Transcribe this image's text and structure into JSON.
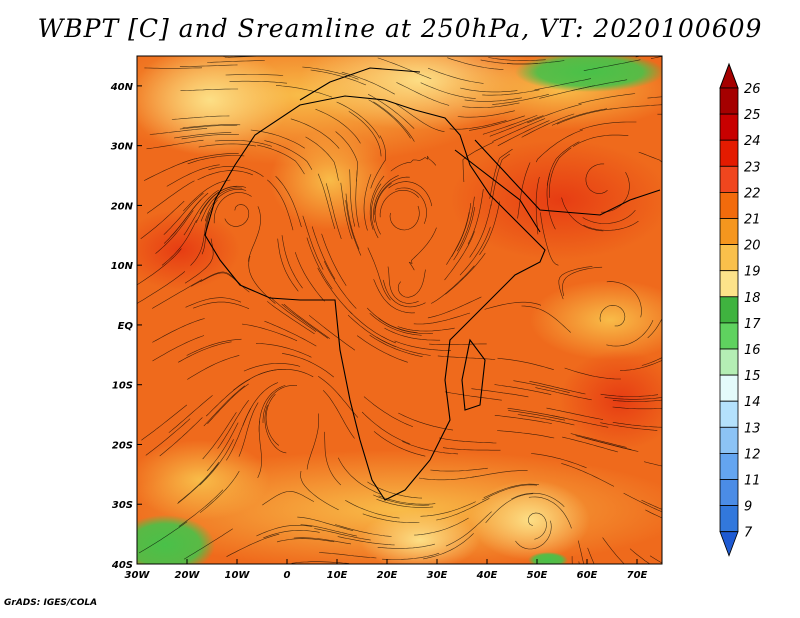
{
  "title": "WBPT [C] and Sreamline at 250hPa, VT: 2020100609",
  "credit": "GrADS: IGES/COLA",
  "map": {
    "lon_range": [
      -30,
      75
    ],
    "lat_range": [
      -40,
      45
    ],
    "lon_ticks": [
      {
        "value": -30,
        "label": "30W"
      },
      {
        "value": -20,
        "label": "20W"
      },
      {
        "value": -10,
        "label": "10W"
      },
      {
        "value": 0,
        "label": "0"
      },
      {
        "value": 10,
        "label": "10E"
      },
      {
        "value": 20,
        "label": "20E"
      },
      {
        "value": 30,
        "label": "30E"
      },
      {
        "value": 40,
        "label": "40E"
      },
      {
        "value": 50,
        "label": "50E"
      },
      {
        "value": 60,
        "label": "60E"
      },
      {
        "value": 70,
        "label": "70E"
      }
    ],
    "lat_ticks": [
      {
        "value": 40,
        "label": "40N"
      },
      {
        "value": 30,
        "label": "30N"
      },
      {
        "value": 20,
        "label": "20N"
      },
      {
        "value": 10,
        "label": "10N"
      },
      {
        "value": 0,
        "label": "EQ"
      },
      {
        "value": -10,
        "label": "10S"
      },
      {
        "value": -20,
        "label": "20S"
      },
      {
        "value": -30,
        "label": "30S"
      },
      {
        "value": -40,
        "label": "40S"
      }
    ]
  },
  "colorbar": {
    "levels": [
      {
        "label": "26",
        "color": "#a50000"
      },
      {
        "label": "25",
        "color": "#c80000"
      },
      {
        "label": "24",
        "color": "#e41b00"
      },
      {
        "label": "23",
        "color": "#f0461e"
      },
      {
        "label": "22",
        "color": "#f26b0c"
      },
      {
        "label": "21",
        "color": "#f5961e"
      },
      {
        "label": "20",
        "color": "#f9c04b"
      },
      {
        "label": "19",
        "color": "#fde38a"
      },
      {
        "label": "18",
        "color": "#3fb33f"
      },
      {
        "label": "17",
        "color": "#5fd25f"
      },
      {
        "label": "16",
        "color": "#b4eeb4"
      },
      {
        "label": "15",
        "color": "#e4fbfb"
      },
      {
        "label": "14",
        "color": "#b4e1fc"
      },
      {
        "label": "13",
        "color": "#8cc3f5"
      },
      {
        "label": "12",
        "color": "#64a5f0"
      },
      {
        "label": "11",
        "color": "#4b8ce6"
      },
      {
        "label": "9",
        "color": "#3278dc"
      },
      {
        "label": "7",
        "color": "#1e5ad2"
      }
    ]
  }
}
